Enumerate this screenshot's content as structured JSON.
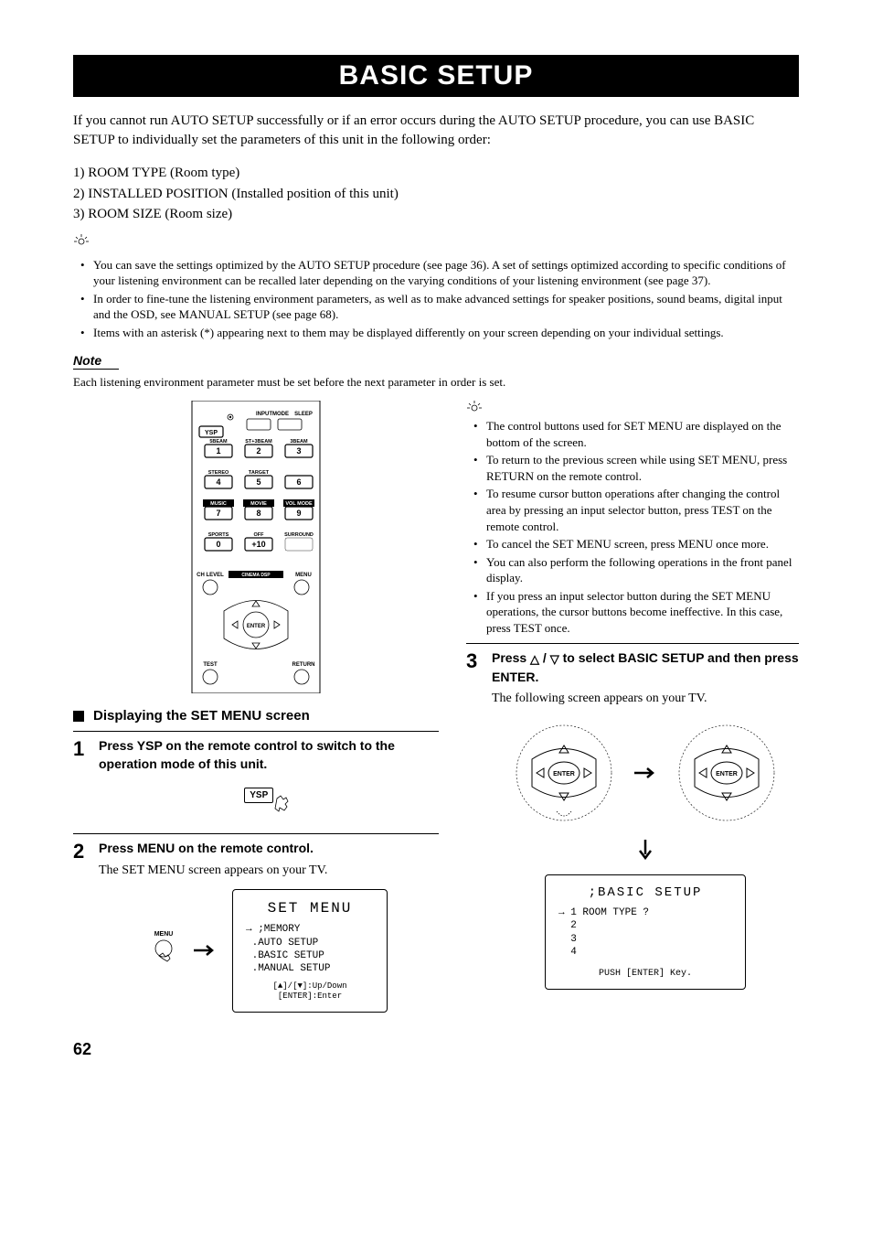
{
  "title": "BASIC SETUP",
  "intro": "If you cannot run AUTO SETUP successfully or if an error occurs during the AUTO SETUP procedure, you can use BASIC SETUP to individually set the parameters of this unit in the following order:",
  "order": {
    "i1": "1) ROOM TYPE (Room type)",
    "i2": "2) INSTALLED POSITION (Installed position of this unit)",
    "i3": "3) ROOM SIZE (Room size)"
  },
  "tips1": [
    "You can save the settings optimized by the AUTO SETUP procedure (see page 36). A set of settings optimized according to specific conditions of your listening environment can be recalled later depending on the varying conditions of your listening environment (see page 37).",
    "In order to fine-tune the listening environment parameters, as well as to make advanced settings for speaker positions, sound beams, digital input and the OSD, see MANUAL SETUP (see page 68).",
    "Items with an asterisk (*) appearing next to them may be displayed differently on your screen depending on your individual settings."
  ],
  "note_label": "Note",
  "note_text": "Each listening environment parameter must be set before the next parameter in order is set.",
  "remote": {
    "top_labels": {
      "inputmode": "INPUTMODE",
      "sleep": "SLEEP"
    },
    "ysp": "YSP",
    "rows": [
      {
        "labels": [
          "5BEAM",
          "ST+3BEAM",
          "3BEAM"
        ],
        "keys": [
          "1",
          "2",
          "3"
        ]
      },
      {
        "labels": [
          "STEREO",
          "TARGET",
          ""
        ],
        "keys": [
          "4",
          "5",
          "6"
        ]
      },
      {
        "labels": [
          "MUSIC",
          "MOVIE",
          "VOL MODE"
        ],
        "keys": [
          "7",
          "8",
          "9"
        ]
      },
      {
        "labels": [
          "SPORTS",
          "OFF",
          "SURROUND"
        ],
        "keys": [
          "0",
          "+10",
          ""
        ]
      }
    ],
    "cinema_dsp": "CINEMA DSP",
    "ch_level": "CH LEVEL",
    "menu": "MENU",
    "enter": "ENTER",
    "test": "TEST",
    "return": "RETURN"
  },
  "section_display": "Displaying the SET MENU screen",
  "step1": {
    "num": "1",
    "title": "Press YSP on the remote control to switch to the operation mode of this unit.",
    "ysp_label": "YSP"
  },
  "step2": {
    "num": "2",
    "title": "Press MENU on the remote control.",
    "desc": "The SET MENU screen appears on your TV.",
    "menu_label": "MENU",
    "lcd_title": "SET MENU",
    "lcd_items": ";MEMORY\n .AUTO SETUP\n .BASIC SETUP\n .MANUAL SETUP",
    "lcd_hint": "[▲]/[▼]:Up/Down\n[ENTER]:Enter"
  },
  "right_tips": [
    "The control buttons used for SET MENU are displayed on the bottom of the screen.",
    "To return to the previous screen while using SET MENU, press RETURN on the remote control.",
    "To resume cursor button operations after changing the control area by pressing an input selector button, press TEST on the remote control.",
    "To cancel the SET MENU screen, press MENU once more.",
    "You can also perform the following operations in the front panel display.",
    "If you press an input selector button during the SET MENU operations, the cursor buttons become ineffective. In this case, press TEST once."
  ],
  "step3": {
    "num": "3",
    "title_pre": "Press ",
    "title_mid": " / ",
    "title_post": " to select BASIC SETUP and then press ENTER.",
    "desc": "The following screen appears on your TV.",
    "enter": "ENTER",
    "lcd_title": ";BASIC SETUP",
    "lcd_items": "→ 1 ROOM TYPE ?\n  2\n  3\n  4",
    "lcd_hint": "PUSH [ENTER] Key."
  },
  "page_num": "62"
}
